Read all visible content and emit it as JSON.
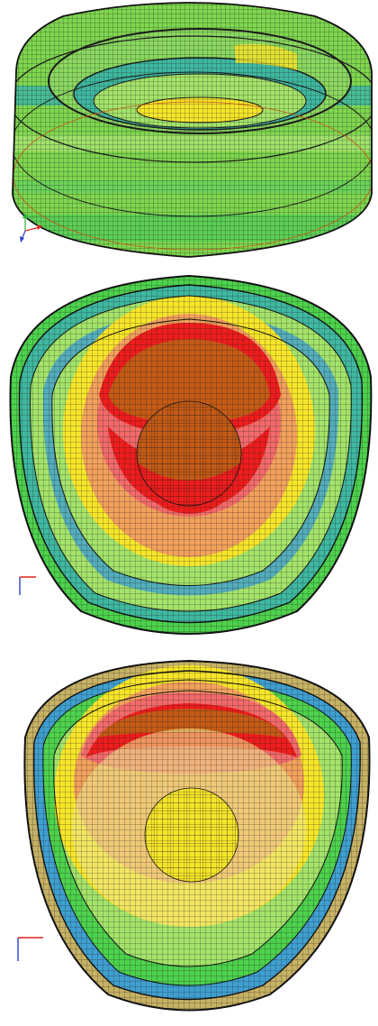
{
  "figure": {
    "panels": [
      {
        "view": "isometric",
        "triad_axes": [
          "y",
          "x",
          "z"
        ]
      },
      {
        "view": "top",
        "triad_axes": [
          "y",
          "x"
        ]
      },
      {
        "view": "bottom",
        "triad_axes": [
          "y",
          "x"
        ]
      }
    ],
    "colors": {
      "red": "#ee1d1d",
      "light_red": "#f26a6a",
      "orange": "#c35a16",
      "yellow": "#f7e52a",
      "pale_yellow": "#efe48a",
      "light_green": "#a4e36a",
      "green": "#4dd24c",
      "teal": "#3fb8a0",
      "blue": "#3f9fd0",
      "tan": "#c7b264",
      "mesh": "#1a1a1a",
      "axis_x": "#e0231c",
      "axis_y": "#2ab53a",
      "axis_z": "#2a3fd0"
    }
  }
}
